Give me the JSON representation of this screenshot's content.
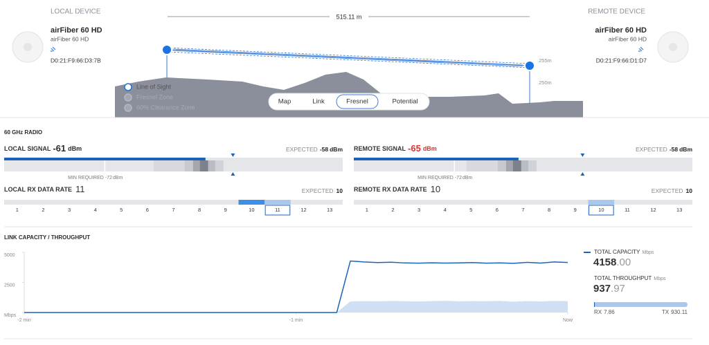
{
  "local_device": {
    "heading": "LOCAL DEVICE",
    "name": "airFiber 60 HD",
    "model": "airFiber 60 HD",
    "mac": "D0:21:F9:66:D3:7B"
  },
  "remote_device": {
    "heading": "REMOTE DEVICE",
    "name": "airFiber 60 HD",
    "model": "airFiber 60 HD",
    "mac": "D0:21:F9:66:D1:D7"
  },
  "link": {
    "distance": "515.11 m",
    "elevation_labels": [
      "255m",
      "250m"
    ],
    "legend": [
      "Line of Sight",
      "Fresnel Zone",
      "60% Clearance Zone"
    ],
    "tabs": [
      "Map",
      "Link",
      "Fresnel",
      "Potential"
    ],
    "active_tab": 2
  },
  "radio": {
    "heading": "60 GHz RADIO",
    "unit": "dBm",
    "expected_label": "EXPECTED",
    "min_required_label": "MIN REQUIRED",
    "signal_range": [
      -83,
      -46
    ],
    "rates": [
      1,
      2,
      3,
      4,
      5,
      6,
      7,
      8,
      9,
      10,
      11,
      12,
      13
    ],
    "local": {
      "signal_label": "LOCAL SIGNAL",
      "signal": -61,
      "expected": -58,
      "min_required": -72,
      "rx_label": "LOCAL RX DATA RATE",
      "rx_rate": 11,
      "rx_expected": 10,
      "color": "#2a2a2a"
    },
    "remote": {
      "signal_label": "REMOTE SIGNAL",
      "signal": -65,
      "expected": -58,
      "min_required": -72,
      "rx_label": "REMOTE RX DATA RATE",
      "rx_rate": 10,
      "rx_expected": 10,
      "color": "#d9322f"
    }
  },
  "chart_data": {
    "type": "line",
    "title": "LINK CAPACITY / THROUGHPUT",
    "unit": "Mbps",
    "xlim": [
      -120,
      0
    ],
    "xticks": [
      {
        "value": -120,
        "label": "-2 min"
      },
      {
        "value": -60,
        "label": "-1 min"
      },
      {
        "value": 0,
        "label": "Now"
      }
    ],
    "ylim": [
      0,
      5000
    ],
    "yticks": [
      {
        "value": 0,
        "label": "Mbps"
      },
      2500,
      5000
    ],
    "x": [
      -120,
      -117,
      -114,
      -111,
      -108,
      -105,
      -102,
      -99,
      -96,
      -93,
      -90,
      -87,
      -84,
      -81,
      -78,
      -75,
      -72,
      -69,
      -66,
      -63,
      -60,
      -57,
      -54,
      -51,
      -48,
      -45,
      -42,
      -39,
      -36,
      -33,
      -30,
      -27,
      -24,
      -21,
      -18,
      -15,
      -12,
      -9,
      -6,
      -3,
      0
    ],
    "series": [
      {
        "name": "TOTAL CAPACITY",
        "color": "#1b63b8",
        "area": false,
        "values": [
          0,
          0,
          0,
          0,
          0,
          0,
          0,
          0,
          0,
          0,
          0,
          0,
          0,
          0,
          0,
          0,
          0,
          0,
          0,
          0,
          0,
          0,
          0,
          0,
          4280,
          4200,
          4150,
          4180,
          4120,
          4100,
          4130,
          4110,
          4120,
          4150,
          4100,
          4120,
          4090,
          4170,
          4110,
          4200,
          4158
        ]
      },
      {
        "name": "TOTAL THROUGHPUT",
        "color": "#cfe0f5",
        "area": true,
        "values": [
          0,
          0,
          0,
          0,
          0,
          0,
          0,
          0,
          0,
          0,
          0,
          0,
          0,
          0,
          0,
          0,
          0,
          0,
          0,
          0,
          0,
          0,
          0,
          0,
          920,
          950,
          930,
          960,
          940,
          910,
          950,
          970,
          930,
          950,
          940,
          960,
          900,
          950,
          920,
          960,
          938
        ]
      }
    ],
    "totals": {
      "values": [
        4158,
        937.97
      ],
      "value_labels": [
        "4158.00",
        "937.97"
      ]
    },
    "rx_label": "RX",
    "rx": 7.86,
    "tx_label": "TX",
    "tx": 930.11
  }
}
